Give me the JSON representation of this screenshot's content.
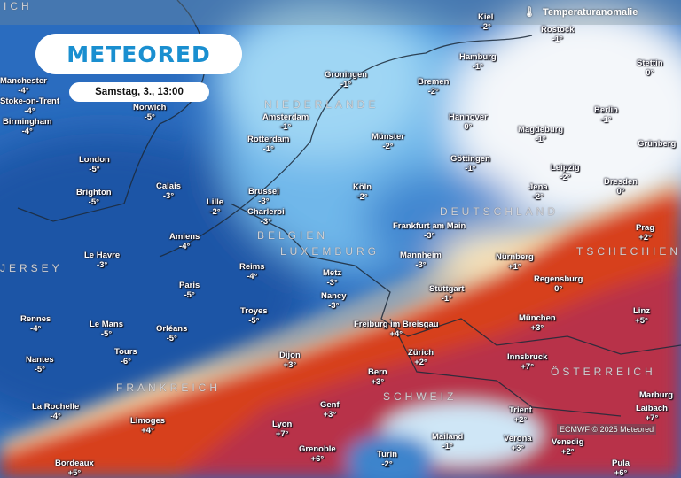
{
  "header": {
    "title": "Temperaturanomalie",
    "icon": "thermometer-icon"
  },
  "logo": {
    "text": "METEORED"
  },
  "date_label": "Samstag, 3., 13:00",
  "credit": "ECMWF © 2025 Meteored",
  "colors": {
    "cold": "#1f5fb0",
    "neutral": "#f4f7fa",
    "warm": "#d2361f",
    "very_warm": "#a8284e",
    "brand": "#1a8fd0"
  },
  "countries": [
    "NIEDERLANDE",
    "BELGIEN",
    "LUXEMBURG",
    "DEUTSCHLAND",
    "FRANKREICH",
    "SCHWEIZ",
    "ÖSTERREICH",
    "JERSEY",
    "TSCHECHIEN",
    "ICH"
  ],
  "cities": [
    {
      "name": "Manchester",
      "value": "-4°"
    },
    {
      "name": "Stoke-on-Trent",
      "value": "-4°"
    },
    {
      "name": "Birmingham",
      "value": "-4°"
    },
    {
      "name": "Norwich",
      "value": "-5°"
    },
    {
      "name": "London",
      "value": "-5°"
    },
    {
      "name": "Brighton",
      "value": "-5°"
    },
    {
      "name": "Calais",
      "value": "-3°"
    },
    {
      "name": "Lille",
      "value": "-2°"
    },
    {
      "name": "Brussel",
      "value": "-3°"
    },
    {
      "name": "Charleroi",
      "value": "-3°"
    },
    {
      "name": "Amsterdam",
      "value": "-1°"
    },
    {
      "name": "Rotterdam",
      "value": "-1°"
    },
    {
      "name": "Groningen",
      "value": "-1°"
    },
    {
      "name": "Hamburg",
      "value": "-1°"
    },
    {
      "name": "Kiel",
      "value": "-2°"
    },
    {
      "name": "Rostock",
      "value": "-1°"
    },
    {
      "name": "Stettin",
      "value": "0°"
    },
    {
      "name": "Bremen",
      "value": "-2°"
    },
    {
      "name": "Berlin",
      "value": "-1°"
    },
    {
      "name": "Hannover",
      "value": "0°"
    },
    {
      "name": "Magdeburg",
      "value": "-1°"
    },
    {
      "name": "Münster",
      "value": "-2°"
    },
    {
      "name": "Grünberg",
      "value": ""
    },
    {
      "name": "Göttingen",
      "value": "-1°"
    },
    {
      "name": "Leipzig",
      "value": "-2°"
    },
    {
      "name": "Jena",
      "value": "-2°"
    },
    {
      "name": "Dresden",
      "value": "0°"
    },
    {
      "name": "Köln",
      "value": "-2°"
    },
    {
      "name": "Frankfurt am Main",
      "value": "-3°"
    },
    {
      "name": "Prag",
      "value": "+2°"
    },
    {
      "name": "Amiens",
      "value": "-4°"
    },
    {
      "name": "Le Havre",
      "value": "-3°"
    },
    {
      "name": "Reims",
      "value": "-4°"
    },
    {
      "name": "Metz",
      "value": "-3°"
    },
    {
      "name": "Nancy",
      "value": "-3°"
    },
    {
      "name": "Paris",
      "value": "-5°"
    },
    {
      "name": "Troyes",
      "value": "-5°"
    },
    {
      "name": "Mannheim",
      "value": "-3°"
    },
    {
      "name": "Nürnberg",
      "value": "+1°"
    },
    {
      "name": "Regensburg",
      "value": "0°"
    },
    {
      "name": "Stuttgart",
      "value": "-1°"
    },
    {
      "name": "Rennes",
      "value": "-4°"
    },
    {
      "name": "Le Mans",
      "value": "-5°"
    },
    {
      "name": "Orléans",
      "value": "-5°"
    },
    {
      "name": "Tours",
      "value": "-6°"
    },
    {
      "name": "Nantes",
      "value": "-5°"
    },
    {
      "name": "Freiburg im Breisgau",
      "value": "+4°"
    },
    {
      "name": "München",
      "value": "+3°"
    },
    {
      "name": "Linz",
      "value": "+5°"
    },
    {
      "name": "Dijon",
      "value": "+3°"
    },
    {
      "name": "Zürich",
      "value": "+2°"
    },
    {
      "name": "Bern",
      "value": "+3°"
    },
    {
      "name": "Innsbruck",
      "value": "+7°"
    },
    {
      "name": "Marburg",
      "value": ""
    },
    {
      "name": "La Rochelle",
      "value": "-4°"
    },
    {
      "name": "Limoges",
      "value": "+4°"
    },
    {
      "name": "Lyon",
      "value": "+7°"
    },
    {
      "name": "Genf",
      "value": "+3°"
    },
    {
      "name": "Grenoble",
      "value": "+6°"
    },
    {
      "name": "Trient",
      "value": "+2°"
    },
    {
      "name": "Laibach",
      "value": "+7°"
    },
    {
      "name": "Mailand",
      "value": "-1°"
    },
    {
      "name": "Verona",
      "value": "+3°"
    },
    {
      "name": "Venedig",
      "value": "+2°"
    },
    {
      "name": "Turin",
      "value": "-2°"
    },
    {
      "name": "Bordeaux",
      "value": "+5°"
    },
    {
      "name": "Pula",
      "value": "+6°"
    }
  ]
}
